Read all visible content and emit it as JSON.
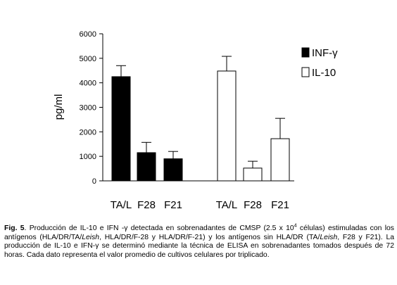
{
  "chart_data": {
    "type": "bar",
    "title": "",
    "xlabel": "",
    "ylabel": "pg/ml",
    "ylim": [
      0,
      6000
    ],
    "yticks": [
      "0",
      "1000",
      "2000",
      "3000",
      "4000",
      "5000",
      "6000"
    ],
    "groups": [
      {
        "series": "INF-γ",
        "fill": "#000000",
        "categories": [
          "TA/L",
          "F28",
          "F21"
        ],
        "values": [
          4250,
          1150,
          900
        ],
        "errors": [
          450,
          420,
          300
        ]
      },
      {
        "series": "IL-10",
        "fill": "#ffffff",
        "categories": [
          "TA/L",
          "F28",
          "F21"
        ],
        "values": [
          4480,
          520,
          1720
        ],
        "errors": [
          600,
          280,
          830
        ]
      }
    ],
    "legend": [
      {
        "name": "INF-γ",
        "fill": "#000000"
      },
      {
        "name": "IL-10",
        "fill": "#ffffff"
      }
    ],
    "legend_position": "right",
    "grid": false
  },
  "caption": {
    "fig_label": "Fig. 5",
    "p1": ".  Producción de IL-10 e IFN -",
    "gamma1": "γ",
    "p2": "  detectada en sobrenadantes de CMSP (2.5 x 10",
    "sup": "4",
    "p3": "  células) estimuladas con los antígenos (HLA/DR/TA/",
    "leish1": "Leish",
    "p4": ", HLA/DR/F-28 y HLA/DR/F-21)  y los antígenos sin HLA/DR (TA/",
    "leish2": "Leish",
    "p5": ", F28 y F21).  La producción de IL-10 e IFN-",
    "gamma2": "γ",
    "p6": "  se determinó mediante la técnica de ELISA en sobrenadantes tomados después de 72 horas.  Cada dato representa el valor promedio de cultivos celulares por triplicado."
  }
}
